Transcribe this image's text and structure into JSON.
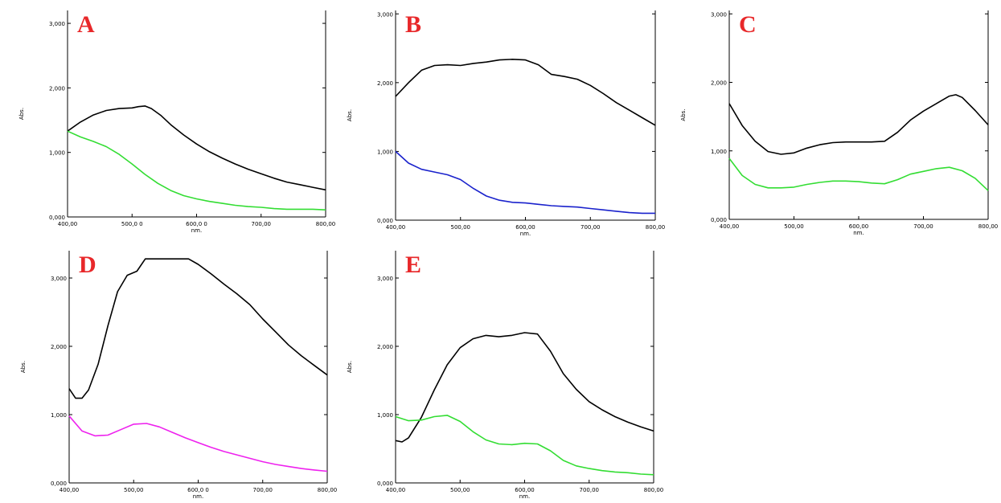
{
  "colors": {
    "black": "#000000",
    "green": "#33dd33",
    "blue": "#1a22cc",
    "magenta": "#ee22ee",
    "letter": "#e8282a"
  },
  "chart_data": [
    {
      "type": "line",
      "panel": "A",
      "xlabel": "nm.",
      "ylabel": "Abs.",
      "xlim": [
        400,
        800
      ],
      "ylim": [
        0,
        3.2
      ],
      "xticks": [
        400,
        500,
        600,
        700,
        800
      ],
      "xtick_labels": [
        "400,00",
        "500,0 0",
        "600,0 0",
        "700,00",
        "800,00"
      ],
      "yticks": [
        0,
        1,
        2,
        3
      ],
      "ytick_labels": [
        "0,000",
        "1,000",
        "2,000",
        "3,000"
      ],
      "series": [
        {
          "color": "#000000",
          "points": [
            [
              400,
              1.33
            ],
            [
              420,
              1.47
            ],
            [
              440,
              1.58
            ],
            [
              460,
              1.65
            ],
            [
              480,
              1.68
            ],
            [
              500,
              1.69
            ],
            [
              510,
              1.71
            ],
            [
              520,
              1.72
            ],
            [
              530,
              1.68
            ],
            [
              545,
              1.57
            ],
            [
              560,
              1.43
            ],
            [
              580,
              1.27
            ],
            [
              600,
              1.13
            ],
            [
              620,
              1.01
            ],
            [
              640,
              0.91
            ],
            [
              660,
              0.82
            ],
            [
              680,
              0.74
            ],
            [
              700,
              0.67
            ],
            [
              720,
              0.6
            ],
            [
              740,
              0.54
            ],
            [
              760,
              0.5
            ],
            [
              780,
              0.46
            ],
            [
              800,
              0.42
            ]
          ]
        },
        {
          "color": "#33dd33",
          "points": [
            [
              400,
              1.33
            ],
            [
              420,
              1.24
            ],
            [
              440,
              1.17
            ],
            [
              460,
              1.09
            ],
            [
              480,
              0.97
            ],
            [
              500,
              0.82
            ],
            [
              520,
              0.66
            ],
            [
              540,
              0.52
            ],
            [
              560,
              0.41
            ],
            [
              580,
              0.33
            ],
            [
              600,
              0.28
            ],
            [
              620,
              0.24
            ],
            [
              640,
              0.21
            ],
            [
              660,
              0.18
            ],
            [
              680,
              0.16
            ],
            [
              700,
              0.15
            ],
            [
              720,
              0.13
            ],
            [
              740,
              0.12
            ],
            [
              760,
              0.12
            ],
            [
              780,
              0.12
            ],
            [
              800,
              0.11
            ]
          ]
        }
      ]
    },
    {
      "type": "line",
      "panel": "B",
      "xlabel": "nm.",
      "ylabel": "Abs.",
      "xlim": [
        400,
        800
      ],
      "ylim": [
        0,
        3.05
      ],
      "xticks": [
        400,
        500,
        600,
        700,
        800
      ],
      "xtick_labels": [
        "400,00",
        "500,00",
        "600,00",
        "700,00",
        "800,00"
      ],
      "yticks": [
        0,
        1,
        2,
        3
      ],
      "ytick_labels": [
        "0,000",
        "1,000",
        "2,000",
        "3,000"
      ],
      "series": [
        {
          "color": "#000000",
          "points": [
            [
              400,
              1.8
            ],
            [
              420,
              2.0
            ],
            [
              440,
              2.18
            ],
            [
              460,
              2.25
            ],
            [
              480,
              2.26
            ],
            [
              500,
              2.25
            ],
            [
              520,
              2.28
            ],
            [
              540,
              2.3
            ],
            [
              560,
              2.33
            ],
            [
              580,
              2.34
            ],
            [
              600,
              2.33
            ],
            [
              620,
              2.26
            ],
            [
              640,
              2.12
            ],
            [
              660,
              2.09
            ],
            [
              680,
              2.05
            ],
            [
              700,
              1.96
            ],
            [
              720,
              1.84
            ],
            [
              740,
              1.71
            ],
            [
              760,
              1.6
            ],
            [
              780,
              1.49
            ],
            [
              800,
              1.38
            ]
          ]
        },
        {
          "color": "#1a22cc",
          "points": [
            [
              400,
              1.0
            ],
            [
              420,
              0.83
            ],
            [
              440,
              0.74
            ],
            [
              460,
              0.7
            ],
            [
              480,
              0.66
            ],
            [
              500,
              0.59
            ],
            [
              520,
              0.46
            ],
            [
              540,
              0.35
            ],
            [
              560,
              0.29
            ],
            [
              580,
              0.26
            ],
            [
              600,
              0.25
            ],
            [
              620,
              0.23
            ],
            [
              640,
              0.21
            ],
            [
              660,
              0.2
            ],
            [
              680,
              0.19
            ],
            [
              700,
              0.17
            ],
            [
              720,
              0.15
            ],
            [
              740,
              0.13
            ],
            [
              760,
              0.11
            ],
            [
              780,
              0.1
            ],
            [
              800,
              0.1
            ]
          ]
        }
      ]
    },
    {
      "type": "line",
      "panel": "C",
      "xlabel": "nm.",
      "ylabel": "Abs.",
      "xlim": [
        400,
        800
      ],
      "ylim": [
        0,
        3.05
      ],
      "xticks": [
        400,
        500,
        600,
        700,
        800
      ],
      "xtick_labels": [
        "400,00",
        "500,00",
        "600,00",
        "700,00",
        "800,00"
      ],
      "yticks": [
        0,
        1,
        2,
        3
      ],
      "ytick_labels": [
        "0,000",
        "1,000",
        "2,000",
        "3,000"
      ],
      "series": [
        {
          "color": "#000000",
          "points": [
            [
              400,
              1.69
            ],
            [
              420,
              1.37
            ],
            [
              440,
              1.14
            ],
            [
              460,
              0.99
            ],
            [
              480,
              0.95
            ],
            [
              500,
              0.97
            ],
            [
              520,
              1.04
            ],
            [
              540,
              1.09
            ],
            [
              560,
              1.12
            ],
            [
              580,
              1.13
            ],
            [
              600,
              1.13
            ],
            [
              620,
              1.13
            ],
            [
              640,
              1.14
            ],
            [
              660,
              1.27
            ],
            [
              680,
              1.45
            ],
            [
              700,
              1.58
            ],
            [
              720,
              1.69
            ],
            [
              740,
              1.8
            ],
            [
              750,
              1.82
            ],
            [
              760,
              1.78
            ],
            [
              780,
              1.59
            ],
            [
              800,
              1.38
            ]
          ]
        },
        {
          "color": "#33dd33",
          "points": [
            [
              400,
              0.89
            ],
            [
              420,
              0.64
            ],
            [
              440,
              0.51
            ],
            [
              460,
              0.46
            ],
            [
              480,
              0.46
            ],
            [
              500,
              0.47
            ],
            [
              520,
              0.51
            ],
            [
              540,
              0.54
            ],
            [
              560,
              0.56
            ],
            [
              580,
              0.56
            ],
            [
              600,
              0.55
            ],
            [
              620,
              0.53
            ],
            [
              640,
              0.52
            ],
            [
              660,
              0.58
            ],
            [
              680,
              0.66
            ],
            [
              700,
              0.7
            ],
            [
              720,
              0.74
            ],
            [
              740,
              0.76
            ],
            [
              760,
              0.71
            ],
            [
              780,
              0.6
            ],
            [
              800,
              0.42
            ]
          ]
        }
      ]
    },
    {
      "type": "line",
      "panel": "D",
      "xlabel": "nm.",
      "ylabel": "Abs.",
      "xlim": [
        400,
        800
      ],
      "ylim": [
        0,
        3.4
      ],
      "xticks": [
        400,
        500,
        600,
        700,
        800
      ],
      "xtick_labels": [
        "400,00",
        "500,00",
        "600,0 0",
        "700,00",
        "800,00"
      ],
      "yticks": [
        0,
        1,
        2,
        3
      ],
      "ytick_labels": [
        "0,000",
        "1,000",
        "2,000",
        "3,000"
      ],
      "series": [
        {
          "color": "#000000",
          "points": [
            [
              400,
              1.38
            ],
            [
              410,
              1.24
            ],
            [
              420,
              1.24
            ],
            [
              430,
              1.36
            ],
            [
              445,
              1.74
            ],
            [
              460,
              2.3
            ],
            [
              475,
              2.8
            ],
            [
              490,
              3.04
            ],
            [
              505,
              3.1
            ],
            [
              518,
              3.28
            ],
            [
              530,
              3.28
            ],
            [
              560,
              3.28
            ],
            [
              585,
              3.28
            ],
            [
              600,
              3.2
            ],
            [
              620,
              3.06
            ],
            [
              640,
              2.91
            ],
            [
              660,
              2.77
            ],
            [
              680,
              2.61
            ],
            [
              700,
              2.4
            ],
            [
              720,
              2.21
            ],
            [
              740,
              2.02
            ],
            [
              760,
              1.86
            ],
            [
              780,
              1.72
            ],
            [
              800,
              1.58
            ]
          ]
        },
        {
          "color": "#ee22ee",
          "points": [
            [
              400,
              0.98
            ],
            [
              420,
              0.76
            ],
            [
              440,
              0.69
            ],
            [
              460,
              0.7
            ],
            [
              480,
              0.78
            ],
            [
              500,
              0.86
            ],
            [
              520,
              0.87
            ],
            [
              540,
              0.82
            ],
            [
              560,
              0.74
            ],
            [
              580,
              0.66
            ],
            [
              600,
              0.59
            ],
            [
              620,
              0.52
            ],
            [
              640,
              0.46
            ],
            [
              660,
              0.41
            ],
            [
              680,
              0.36
            ],
            [
              700,
              0.31
            ],
            [
              720,
              0.27
            ],
            [
              740,
              0.24
            ],
            [
              760,
              0.21
            ],
            [
              780,
              0.19
            ],
            [
              800,
              0.17
            ]
          ]
        }
      ]
    },
    {
      "type": "line",
      "panel": "E",
      "xlabel": "nm.",
      "ylabel": "Abs.",
      "xlim": [
        400,
        800
      ],
      "ylim": [
        0,
        3.4
      ],
      "xticks": [
        400,
        500,
        600,
        700,
        800
      ],
      "xtick_labels": [
        "400,00",
        "500,00",
        "600,00",
        "700,00",
        "800,00"
      ],
      "yticks": [
        0,
        1,
        2,
        3
      ],
      "ytick_labels": [
        "0,000",
        "1,000",
        "2,000",
        "3,000"
      ],
      "series": [
        {
          "color": "#000000",
          "points": [
            [
              400,
              0.62
            ],
            [
              410,
              0.6
            ],
            [
              420,
              0.66
            ],
            [
              440,
              0.96
            ],
            [
              460,
              1.36
            ],
            [
              480,
              1.73
            ],
            [
              500,
              1.98
            ],
            [
              520,
              2.11
            ],
            [
              540,
              2.16
            ],
            [
              560,
              2.14
            ],
            [
              580,
              2.16
            ],
            [
              600,
              2.2
            ],
            [
              620,
              2.18
            ],
            [
              640,
              1.93
            ],
            [
              660,
              1.6
            ],
            [
              680,
              1.37
            ],
            [
              700,
              1.19
            ],
            [
              720,
              1.07
            ],
            [
              740,
              0.97
            ],
            [
              760,
              0.89
            ],
            [
              780,
              0.82
            ],
            [
              800,
              0.76
            ]
          ]
        },
        {
          "color": "#33dd33",
          "points": [
            [
              400,
              0.97
            ],
            [
              420,
              0.91
            ],
            [
              440,
              0.92
            ],
            [
              460,
              0.97
            ],
            [
              480,
              0.99
            ],
            [
              500,
              0.9
            ],
            [
              520,
              0.75
            ],
            [
              540,
              0.63
            ],
            [
              560,
              0.57
            ],
            [
              580,
              0.56
            ],
            [
              600,
              0.58
            ],
            [
              620,
              0.57
            ],
            [
              640,
              0.47
            ],
            [
              660,
              0.33
            ],
            [
              680,
              0.25
            ],
            [
              700,
              0.21
            ],
            [
              720,
              0.18
            ],
            [
              740,
              0.16
            ],
            [
              760,
              0.15
            ],
            [
              780,
              0.13
            ],
            [
              800,
              0.12
            ]
          ]
        }
      ]
    }
  ]
}
